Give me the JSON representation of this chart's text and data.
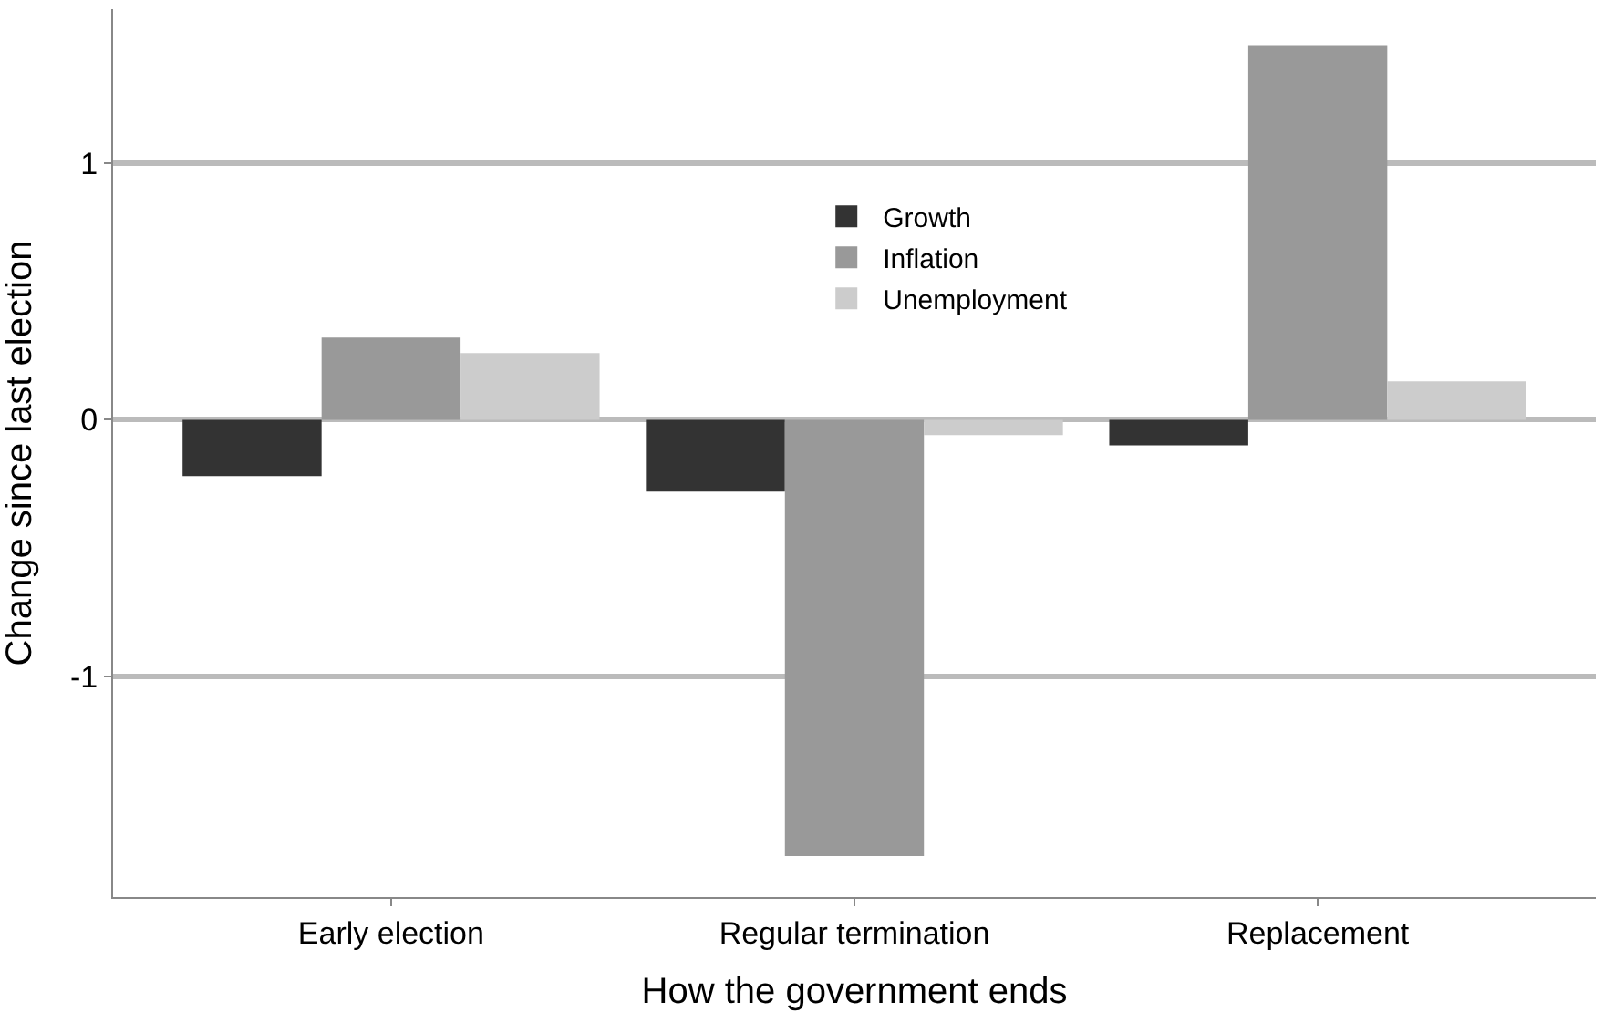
{
  "chart_data": {
    "type": "bar",
    "xlabel": "How the government ends",
    "ylabel": "Change since last election",
    "categories": [
      "Early election",
      "Regular termination",
      "Replacement"
    ],
    "series": [
      {
        "name": "Growth",
        "color": "#333333",
        "values": [
          -0.22,
          -0.28,
          -0.1
        ]
      },
      {
        "name": "Inflation",
        "color": "#999999",
        "values": [
          0.32,
          -1.7,
          1.46
        ]
      },
      {
        "name": "Unemployment",
        "color": "#cccccc",
        "values": [
          0.26,
          -0.06,
          0.15
        ]
      }
    ],
    "ylim": [
      -1.86,
      1.6
    ],
    "yticks": [
      -1,
      0,
      1
    ],
    "grid": "y",
    "legend": "top"
  }
}
